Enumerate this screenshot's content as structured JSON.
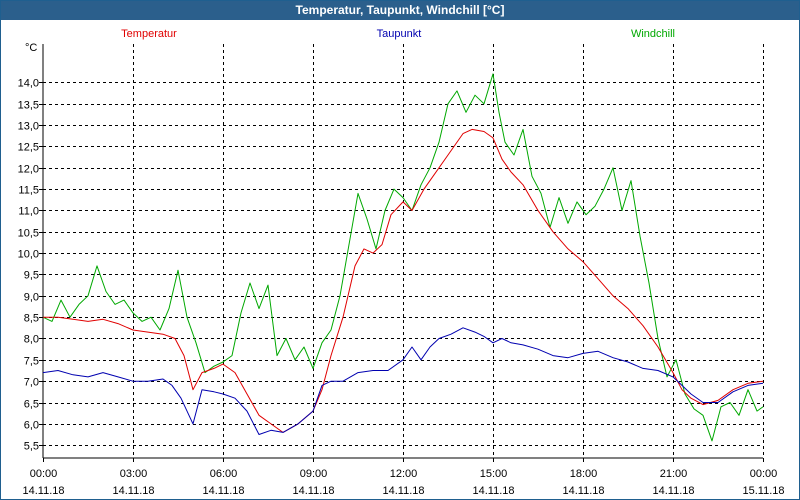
{
  "window": {
    "title": "Temperatur, Taupunkt, Windchill [°C]"
  },
  "chart_data": {
    "type": "line",
    "title": "Temperatur, Taupunkt, Windchill [°C]",
    "ylabel": "°C",
    "xlabel": "",
    "ylim": [
      5.2,
      14.9
    ],
    "yticks": [
      5.5,
      6.0,
      6.5,
      7.0,
      7.5,
      8.0,
      8.5,
      9.0,
      9.5,
      10.0,
      10.5,
      11.0,
      11.5,
      12.0,
      12.5,
      13.0,
      13.5,
      14.0
    ],
    "ytick_labels": [
      "5,5",
      "6,0",
      "6,5",
      "7,0",
      "7,5",
      "8,0",
      "8,5",
      "9,0",
      "9,5",
      "10,0",
      "10,5",
      "11,0",
      "11,5",
      "12,0",
      "12,5",
      "13,0",
      "13,5",
      "14,0"
    ],
    "xlim": [
      0,
      24
    ],
    "xticks": [
      0,
      3,
      6,
      9,
      12,
      15,
      18,
      21,
      24
    ],
    "xtick_times": [
      "00:00",
      "03:00",
      "06:00",
      "09:00",
      "12:00",
      "15:00",
      "18:00",
      "21:00",
      "00:00"
    ],
    "xtick_dates": [
      "14.11.18",
      "14.11.18",
      "14.11.18",
      "14.11.18",
      "14.11.18",
      "14.11.18",
      "14.11.18",
      "14.11.18",
      "15.11.18"
    ],
    "grid": true,
    "series": [
      {
        "name": "Temperatur",
        "color": "#e00000",
        "x": [
          0,
          0.5,
          1,
          1.5,
          2,
          2.5,
          3,
          3.5,
          4,
          4.4,
          4.7,
          5,
          5.3,
          5.7,
          6,
          6.4,
          6.8,
          7.2,
          7.6,
          8,
          8.5,
          9,
          9.3,
          9.6,
          10,
          10.4,
          10.7,
          11,
          11.3,
          11.6,
          12,
          12.3,
          12.7,
          13,
          13.5,
          14,
          14.3,
          14.7,
          15,
          15.3,
          15.6,
          16,
          16.5,
          17,
          17.5,
          18,
          18.5,
          19,
          19.5,
          20,
          20.5,
          21,
          21.3,
          21.6,
          22,
          22.5,
          23,
          23.5,
          24
        ],
        "values": [
          8.5,
          8.5,
          8.45,
          8.4,
          8.45,
          8.35,
          8.2,
          8.15,
          8.1,
          8.0,
          7.6,
          6.8,
          7.2,
          7.3,
          7.4,
          7.2,
          6.7,
          6.2,
          6.0,
          5.8,
          6.0,
          6.3,
          6.8,
          7.6,
          8.5,
          9.7,
          10.1,
          10.0,
          10.2,
          10.9,
          11.2,
          11.0,
          11.5,
          11.8,
          12.3,
          12.8,
          12.9,
          12.85,
          12.7,
          12.2,
          11.9,
          11.6,
          11.0,
          10.5,
          10.1,
          9.8,
          9.4,
          9.0,
          8.7,
          8.3,
          7.8,
          7.2,
          6.8,
          6.6,
          6.45,
          6.55,
          6.8,
          6.95,
          7.0
        ]
      },
      {
        "name": "Taupunkt",
        "color": "#0000b0",
        "x": [
          0,
          0.5,
          1,
          1.5,
          2,
          2.5,
          3,
          3.5,
          4,
          4.3,
          4.6,
          5,
          5.3,
          5.7,
          6,
          6.4,
          6.8,
          7.2,
          7.6,
          8,
          8.5,
          9,
          9.3,
          9.6,
          10,
          10.5,
          11,
          11.5,
          12,
          12.3,
          12.6,
          12.9,
          13.2,
          13.6,
          14,
          14.4,
          14.7,
          15,
          15.3,
          15.6,
          16,
          16.5,
          17,
          17.5,
          18,
          18.5,
          19,
          19.5,
          20,
          20.5,
          21,
          21.3,
          21.6,
          22,
          22.5,
          23,
          23.5,
          24
        ],
        "values": [
          7.2,
          7.25,
          7.15,
          7.1,
          7.2,
          7.1,
          7.0,
          7.0,
          7.05,
          6.9,
          6.6,
          6.0,
          6.8,
          6.75,
          6.7,
          6.6,
          6.3,
          5.75,
          5.85,
          5.8,
          6.0,
          6.3,
          6.9,
          7.0,
          7.0,
          7.2,
          7.25,
          7.25,
          7.5,
          7.8,
          7.5,
          7.8,
          8.0,
          8.1,
          8.25,
          8.15,
          8.05,
          7.9,
          8.0,
          7.9,
          7.85,
          7.75,
          7.6,
          7.55,
          7.65,
          7.7,
          7.55,
          7.45,
          7.3,
          7.25,
          7.1,
          6.9,
          6.7,
          6.5,
          6.5,
          6.75,
          6.9,
          6.95
        ]
      },
      {
        "name": "Windchill",
        "color": "#00a800",
        "x": [
          0,
          0.3,
          0.6,
          0.9,
          1.2,
          1.5,
          1.8,
          2.1,
          2.4,
          2.7,
          3.0,
          3.3,
          3.6,
          3.9,
          4.2,
          4.5,
          4.8,
          5.1,
          5.4,
          5.7,
          6.0,
          6.3,
          6.6,
          6.9,
          7.2,
          7.5,
          7.8,
          8.1,
          8.4,
          8.7,
          9.0,
          9.3,
          9.6,
          9.9,
          10.2,
          10.5,
          10.8,
          11.1,
          11.4,
          11.7,
          12.0,
          12.3,
          12.6,
          12.9,
          13.2,
          13.5,
          13.8,
          14.1,
          14.4,
          14.7,
          15.0,
          15.2,
          15.4,
          15.7,
          16.0,
          16.3,
          16.6,
          16.9,
          17.2,
          17.5,
          17.8,
          18.1,
          18.4,
          18.7,
          19.0,
          19.3,
          19.6,
          19.9,
          20.2,
          20.5,
          20.8,
          21.1,
          21.4,
          21.7,
          22.0,
          22.3,
          22.6,
          22.9,
          23.2,
          23.5,
          23.8,
          24.0
        ],
        "values": [
          8.5,
          8.4,
          8.9,
          8.5,
          8.8,
          9.0,
          9.7,
          9.1,
          8.8,
          8.9,
          8.6,
          8.4,
          8.5,
          8.2,
          8.7,
          9.6,
          8.5,
          7.9,
          7.2,
          7.35,
          7.45,
          7.6,
          8.6,
          9.3,
          8.7,
          9.25,
          7.6,
          8.0,
          7.5,
          7.8,
          7.3,
          7.9,
          8.2,
          9.0,
          10.2,
          11.4,
          10.8,
          10.1,
          11.0,
          11.5,
          11.3,
          11.0,
          11.6,
          12.0,
          12.6,
          13.5,
          13.8,
          13.3,
          13.7,
          13.5,
          14.2,
          13.3,
          12.6,
          12.3,
          12.9,
          11.8,
          11.4,
          10.6,
          11.3,
          10.7,
          11.2,
          10.9,
          11.1,
          11.5,
          12.0,
          11.0,
          11.7,
          10.4,
          9.3,
          8.0,
          7.1,
          7.5,
          6.7,
          6.35,
          6.2,
          5.6,
          6.4,
          6.5,
          6.2,
          6.8,
          6.3,
          6.4
        ]
      }
    ]
  }
}
